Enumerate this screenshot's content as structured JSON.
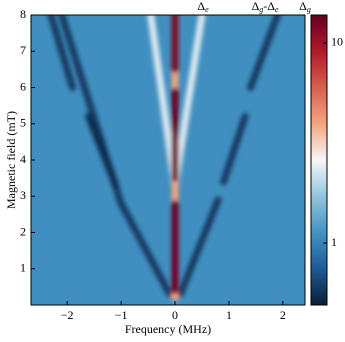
{
  "chart_data": {
    "type": "heatmap",
    "xlabel": "Frequency (MHz)",
    "ylabel": "Magnetic field (mT)",
    "xlim": [
      -2.67,
      2.41
    ],
    "ylim": [
      0,
      8
    ],
    "xticks": [
      {
        "value": -2,
        "label": "−2"
      },
      {
        "value": -1,
        "label": "−1"
      },
      0,
      1,
      2
    ],
    "yticks": [
      1,
      2,
      3,
      4,
      5,
      6,
      7,
      8
    ],
    "clim": [
      0.49,
      13.8
    ],
    "cscale": "log",
    "cticks": [
      1,
      10
    ],
    "colormap": [
      "#0b1e36",
      "#1f5a94",
      "#4393c3",
      "#92c5de",
      "#f7f7f7",
      "#f4a582",
      "#d6604d",
      "#b2182b",
      "#67001f"
    ],
    "background": 1.1,
    "annotations": [
      {
        "x": 0.52,
        "parts": [
          "Δ",
          "e"
        ]
      },
      {
        "x": 1.67,
        "parts": [
          "Δ",
          "g",
          "-Δ",
          "e"
        ]
      },
      {
        "x": 2.41,
        "parts": [
          "Δ",
          "g"
        ]
      }
    ],
    "ridges": [
      {
        "x": [
          -0.1,
          -1.0,
          -2.1
        ],
        "y": [
          0.3,
          2.8,
          8
        ],
        "value": 0.6
      },
      {
        "x": [
          -1.1,
          -1.6
        ],
        "y": [
          3.3,
          5.2
        ],
        "value": 0.55
      },
      {
        "x": [
          -1.9,
          -2.3
        ],
        "y": [
          6.0,
          8
        ],
        "value": 0.6
      },
      {
        "x": [
          0.1,
          0.8
        ],
        "y": [
          0.3,
          2.9
        ],
        "value": 0.6
      },
      {
        "x": [
          0.9,
          1.3
        ],
        "y": [
          3.4,
          5.2
        ],
        "value": 0.6
      },
      {
        "x": [
          1.4,
          1.9
        ],
        "y": [
          6.0,
          8
        ],
        "value": 0.6
      },
      {
        "x": [
          0,
          -0.45
        ],
        "y": [
          3.3,
          8
        ],
        "value": 2.3
      },
      {
        "x": [
          0,
          0.5
        ],
        "y": [
          3.3,
          8
        ],
        "value": 2.3
      },
      {
        "x": [
          0,
          0
        ],
        "y": [
          0.2,
          8
        ],
        "value": 4
      },
      {
        "x": [
          0,
          0
        ],
        "y": [
          0.4,
          2.8
        ],
        "value": 13
      },
      {
        "x": [
          0,
          0
        ],
        "y": [
          3.5,
          5.9
        ],
        "value": 13
      },
      {
        "x": [
          0,
          0
        ],
        "y": [
          6.5,
          8
        ],
        "value": 12
      }
    ]
  }
}
